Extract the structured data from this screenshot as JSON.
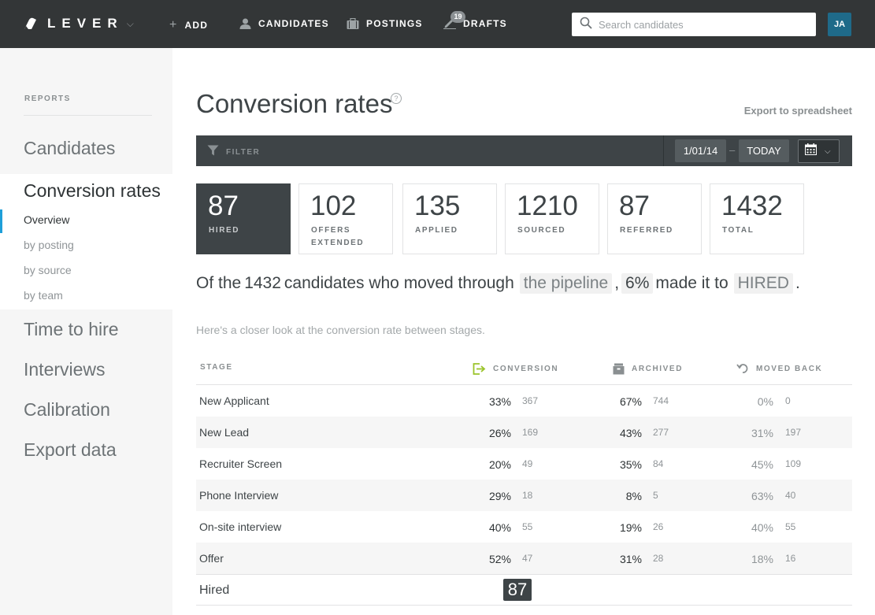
{
  "nav": {
    "logo": "LEVER",
    "add": "ADD",
    "candidates": "CANDIDATES",
    "postings": "POSTINGS",
    "drafts": "DRAFTS",
    "drafts_badge": "19",
    "search_placeholder": "Search candidates",
    "avatar_initials": "JA"
  },
  "sidebar": {
    "heading": "REPORTS",
    "candidates": "Candidates",
    "conversion_rates": "Conversion rates",
    "sub_items": [
      "Overview",
      "by posting",
      "by source",
      "by team"
    ],
    "time_to_hire": "Time to hire",
    "interviews": "Interviews",
    "calibration": "Calibration",
    "export_data": "Export data"
  },
  "main": {
    "title": "Conversion rates",
    "help": "?",
    "export_link": "Export to spreadsheet",
    "filter_label": "FILTER",
    "date_from": "1/01/14",
    "date_dash": "–",
    "date_to": "TODAY",
    "stats": [
      {
        "value": "87",
        "label": "HIRED"
      },
      {
        "value": "102",
        "label": "OFFERS EXTENDED"
      },
      {
        "value": "135",
        "label": "APPLIED"
      },
      {
        "value": "1210",
        "label": "SOURCED"
      },
      {
        "value": "87",
        "label": "REFERRED"
      },
      {
        "value": "1432",
        "label": "TOTAL"
      }
    ],
    "summary": {
      "prefix": "Of the",
      "count": "1432",
      "mid": "candidates who moved through",
      "pipeline": "the pipeline",
      "comma": ",",
      "rate": "6%",
      "made_it": "made it to",
      "stage": "HIRED",
      "period": "."
    },
    "closer_look": "Here's a closer look at the conversion rate between stages.",
    "table": {
      "headers": {
        "stage": "STAGE",
        "conversion": "CONVERSION",
        "archived": "ARCHIVED",
        "moved_back": "MOVED BACK"
      },
      "rows": [
        {
          "stage": "New Applicant",
          "conv_pct": "33%",
          "conv_cnt": "367",
          "arch_pct": "67%",
          "arch_cnt": "744",
          "back_pct": "0%",
          "back_cnt": "0"
        },
        {
          "stage": "New Lead",
          "conv_pct": "26%",
          "conv_cnt": "169",
          "arch_pct": "43%",
          "arch_cnt": "277",
          "back_pct": "31%",
          "back_cnt": "197"
        },
        {
          "stage": "Recruiter Screen",
          "conv_pct": "20%",
          "conv_cnt": "49",
          "arch_pct": "35%",
          "arch_cnt": "84",
          "back_pct": "45%",
          "back_cnt": "109"
        },
        {
          "stage": "Phone Interview",
          "conv_pct": "29%",
          "conv_cnt": "18",
          "arch_pct": "8%",
          "arch_cnt": "5",
          "back_pct": "63%",
          "back_cnt": "40"
        },
        {
          "stage": "On-site interview",
          "conv_pct": "40%",
          "conv_cnt": "55",
          "arch_pct": "19%",
          "arch_cnt": "26",
          "back_pct": "40%",
          "back_cnt": "55"
        },
        {
          "stage": "Offer",
          "conv_pct": "52%",
          "conv_cnt": "47",
          "arch_pct": "31%",
          "arch_cnt": "28",
          "back_pct": "18%",
          "back_cnt": "16"
        }
      ],
      "final_stage": "Hired",
      "final_count": "87"
    }
  },
  "colors": {
    "topbar": "#333637",
    "accent_blue": "#1e9fd9",
    "conversion_icon": "#9bc42b",
    "dark_panel": "#3e4447"
  }
}
